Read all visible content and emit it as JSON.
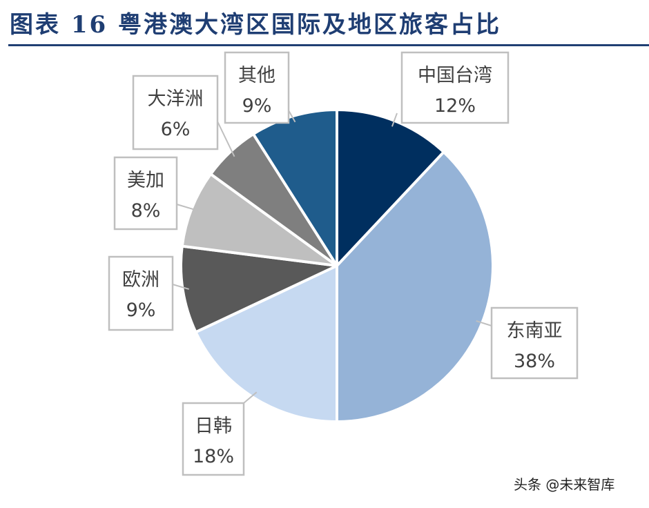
{
  "figure": {
    "title": "图表 16   粤港澳大湾区国际及地区旅客占比",
    "watermark": "头条 @未来智库"
  },
  "chart_data": {
    "type": "pie",
    "categories": [
      "中国台湾",
      "东南亚",
      "日韩",
      "欧洲",
      "美加",
      "大洋洲",
      "其他"
    ],
    "values": [
      12,
      38,
      18,
      9,
      8,
      6,
      9
    ],
    "labels": [
      "12%",
      "38%",
      "18%",
      "9%",
      "8%",
      "6%",
      "9%"
    ],
    "colors": [
      "#002f5f",
      "#95b3d7",
      "#c6d9f1",
      "#595959",
      "#bfbfbf",
      "#7f7f7f",
      "#1f5c8c"
    ],
    "start": "12 o'clock",
    "direction": "clockwise",
    "legend": "none (callout labels)"
  }
}
